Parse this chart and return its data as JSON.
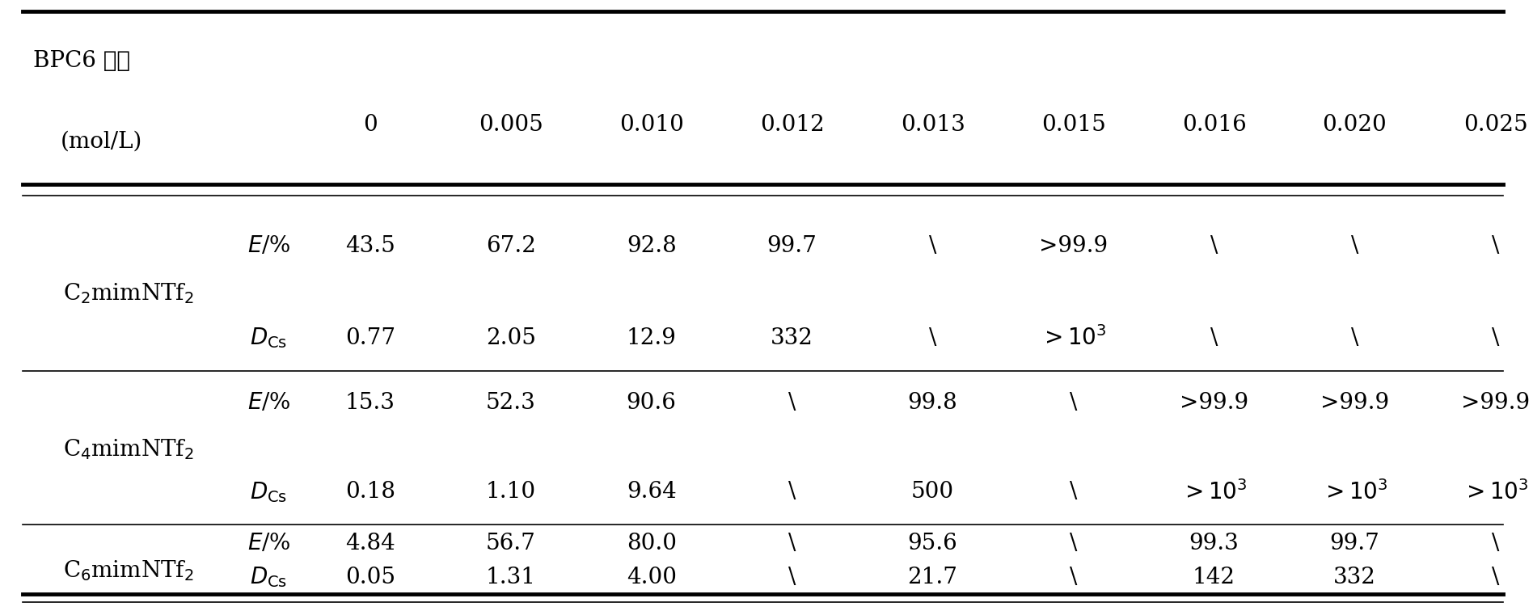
{
  "header_row1": "BPC6 浓度",
  "header_row2": "(mol/L)",
  "concentrations": [
    "0",
    "0.005",
    "0.010",
    "0.012",
    "0.013",
    "0.015",
    "0.016",
    "0.020",
    "0.025"
  ],
  "groups": [
    {
      "name_latex": "C$_2$mimNTf$_2$",
      "rows": [
        {
          "label": "E/%",
          "values": [
            "43.5",
            "67.2",
            "92.8",
            "99.7",
            "\\",
            ">99.9",
            "\\",
            "\\",
            "\\"
          ]
        },
        {
          "label": "D_Cs",
          "values": [
            "0.77",
            "2.05",
            "12.9",
            "332",
            "\\",
            ">10^3",
            "\\",
            "\\",
            "\\"
          ]
        }
      ]
    },
    {
      "name_latex": "C$_4$mimNTf$_2$",
      "rows": [
        {
          "label": "E/%",
          "values": [
            "15.3",
            "52.3",
            "90.6",
            "\\",
            "99.8",
            "\\",
            ">99.9",
            ">99.9",
            ">99.9"
          ]
        },
        {
          "label": "D_Cs",
          "values": [
            "0.18",
            "1.10",
            "9.64",
            "\\",
            "500",
            "\\",
            ">10^3",
            ">10^3",
            ">10^3"
          ]
        }
      ]
    },
    {
      "name_latex": "C$_6$mimNTf$_2$",
      "rows": [
        {
          "label": "E/%",
          "values": [
            "4.84",
            "56.7",
            "80.0",
            "\\",
            "95.6",
            "\\",
            "99.3",
            "99.7",
            "\\"
          ]
        },
        {
          "label": "D_Cs",
          "values": [
            "0.05",
            "1.31",
            "4.00",
            "\\",
            "21.7",
            "\\",
            "142",
            "332",
            "\\"
          ]
        }
      ]
    }
  ],
  "bg_color": "#ffffff",
  "text_color": "#000000",
  "line_color": "#000000",
  "font_size_header": 20,
  "font_size_body": 20,
  "font_size_label": 20,
  "font_size_group": 20
}
